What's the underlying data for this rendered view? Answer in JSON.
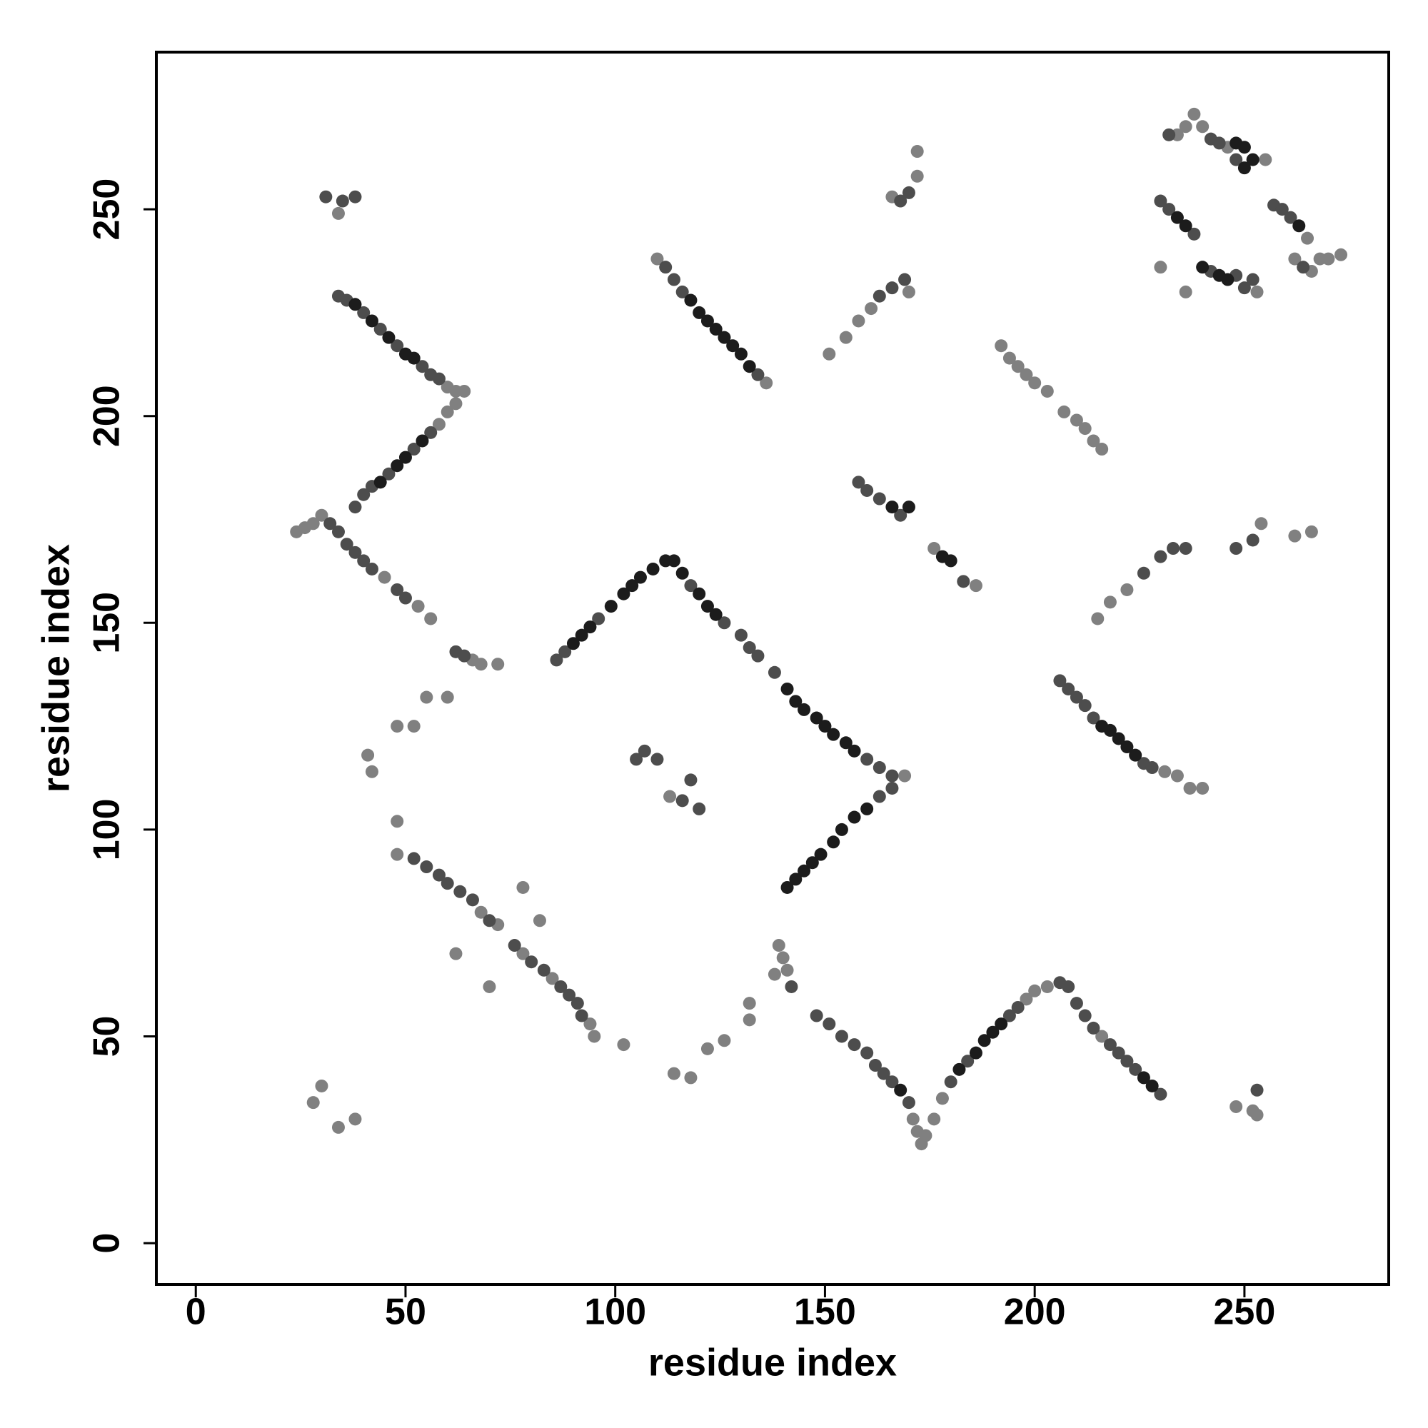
{
  "chart_data": {
    "type": "scatter",
    "x_label": "residue index",
    "y_label": "residue index",
    "xlim": [
      -9.4,
      284.4
    ],
    "ylim": [
      -10,
      288
    ],
    "xticks": [
      0,
      50,
      100,
      150,
      200,
      250
    ],
    "yticks": [
      0,
      50,
      100,
      150,
      200,
      250
    ],
    "grid": false,
    "series": [
      {
        "color": "#808080",
        "x": [
          60,
          62,
          64,
          58,
          60,
          62,
          24,
          26,
          28,
          30,
          45,
          53,
          56,
          34,
          66,
          68,
          72,
          55,
          60,
          48,
          52,
          41,
          42,
          48,
          68,
          72,
          78,
          85,
          94,
          95,
          48,
          82,
          62,
          70,
          78,
          102,
          110,
          136,
          151,
          155,
          158,
          161,
          170,
          172,
          172,
          166,
          113,
          176,
          186,
          171,
          172,
          173,
          174,
          176,
          178,
          198,
          200,
          203,
          216,
          139,
          140,
          141,
          138,
          132,
          132,
          126,
          122,
          114,
          118,
          30,
          28,
          34,
          38,
          192,
          194,
          196,
          198,
          200,
          203,
          207,
          210,
          212,
          214,
          216,
          215,
          218,
          222,
          254,
          262,
          266,
          231,
          234,
          237,
          240,
          230,
          236,
          253,
          234,
          236,
          238,
          240,
          246,
          255,
          265,
          262,
          266,
          268,
          270,
          273,
          248,
          252,
          253,
          169
        ],
        "y": [
          207,
          206,
          206,
          198,
          201,
          203,
          172,
          173,
          174,
          176,
          161,
          154,
          151,
          249,
          141,
          140,
          140,
          132,
          132,
          125,
          125,
          118,
          114,
          94,
          80,
          77,
          70,
          64,
          53,
          50,
          102,
          78,
          70,
          62,
          86,
          48,
          238,
          208,
          215,
          219,
          223,
          226,
          230,
          258,
          264,
          253,
          108,
          168,
          159,
          30,
          27,
          24,
          26,
          30,
          35,
          59,
          61,
          62,
          50,
          72,
          69,
          66,
          65,
          58,
          54,
          49,
          47,
          41,
          40,
          38,
          34,
          28,
          30,
          217,
          214,
          212,
          210,
          208,
          206,
          201,
          199,
          197,
          194,
          192,
          151,
          155,
          158,
          174,
          171,
          172,
          114,
          113,
          110,
          110,
          236,
          230,
          230,
          268,
          270,
          273,
          270,
          265,
          262,
          243,
          238,
          235,
          238,
          238,
          239,
          33,
          32,
          31,
          113
        ]
      },
      {
        "color": "#4d4d4d",
        "x": [
          34,
          36,
          40,
          44,
          48,
          54,
          56,
          58,
          38,
          40,
          42,
          46,
          52,
          56,
          32,
          34,
          36,
          38,
          40,
          42,
          48,
          50,
          31,
          35,
          38,
          62,
          64,
          52,
          55,
          58,
          60,
          63,
          66,
          70,
          76,
          80,
          83,
          87,
          89,
          91,
          92,
          86,
          88,
          96,
          118,
          126,
          130,
          132,
          134,
          138,
          160,
          163,
          166,
          163,
          166,
          105,
          107,
          110,
          116,
          118,
          120,
          112,
          114,
          116,
          134,
          163,
          166,
          169,
          170,
          168,
          158,
          160,
          163,
          168,
          183,
          148,
          151,
          154,
          157,
          160,
          162,
          164,
          166,
          170,
          180,
          184,
          194,
          196,
          206,
          208,
          210,
          212,
          214,
          218,
          220,
          222,
          224,
          230,
          206,
          208,
          210,
          212,
          214,
          226,
          228,
          230,
          232,
          238,
          242,
          248,
          250,
          252,
          232,
          242,
          244,
          248,
          257,
          259,
          261,
          264,
          226,
          230,
          233,
          236,
          248,
          252,
          142,
          253
        ],
        "y": [
          229,
          228,
          225,
          221,
          217,
          212,
          210,
          209,
          178,
          181,
          183,
          186,
          192,
          196,
          174,
          172,
          169,
          167,
          165,
          163,
          158,
          156,
          253,
          252,
          253,
          143,
          142,
          93,
          91,
          89,
          87,
          85,
          83,
          78,
          72,
          68,
          66,
          62,
          60,
          58,
          55,
          141,
          143,
          151,
          159,
          150,
          147,
          144,
          142,
          138,
          117,
          115,
          113,
          108,
          110,
          117,
          119,
          117,
          107,
          112,
          105,
          236,
          233,
          230,
          210,
          229,
          231,
          233,
          254,
          252,
          184,
          182,
          180,
          176,
          160,
          55,
          53,
          50,
          48,
          46,
          43,
          41,
          39,
          34,
          39,
          44,
          55,
          57,
          63,
          62,
          58,
          55,
          52,
          48,
          46,
          44,
          42,
          36,
          136,
          134,
          132,
          130,
          127,
          116,
          115,
          252,
          250,
          244,
          235,
          234,
          231,
          233,
          268,
          267,
          266,
          262,
          251,
          250,
          248,
          236,
          162,
          166,
          168,
          168,
          168,
          170,
          62,
          37
        ]
      },
      {
        "color": "#1c1c1c",
        "x": [
          38,
          42,
          46,
          50,
          52,
          44,
          48,
          50,
          54,
          118,
          120,
          122,
          124,
          126,
          128,
          130,
          132,
          141,
          143,
          145,
          148,
          150,
          152,
          155,
          157,
          141,
          143,
          145,
          147,
          149,
          152,
          154,
          157,
          160,
          90,
          92,
          94,
          99,
          102,
          104,
          106,
          109,
          112,
          114,
          116,
          120,
          122,
          124,
          170,
          178,
          180,
          166,
          168,
          182,
          186,
          188,
          190,
          192,
          216,
          218,
          220,
          222,
          224,
          234,
          236,
          240,
          244,
          246,
          248,
          250,
          252,
          250,
          263,
          226,
          228
        ],
        "y": [
          227,
          223,
          219,
          215,
          214,
          184,
          188,
          190,
          194,
          228,
          225,
          223,
          221,
          219,
          217,
          215,
          212,
          134,
          131,
          129,
          127,
          125,
          123,
          121,
          119,
          86,
          88,
          90,
          92,
          94,
          97,
          100,
          103,
          105,
          145,
          147,
          149,
          154,
          157,
          159,
          161,
          163,
          165,
          165,
          162,
          157,
          154,
          152,
          178,
          166,
          165,
          178,
          37,
          42,
          46,
          49,
          51,
          53,
          125,
          124,
          122,
          120,
          118,
          248,
          246,
          236,
          234,
          233,
          266,
          265,
          262,
          260,
          246,
          40,
          38
        ]
      }
    ]
  }
}
